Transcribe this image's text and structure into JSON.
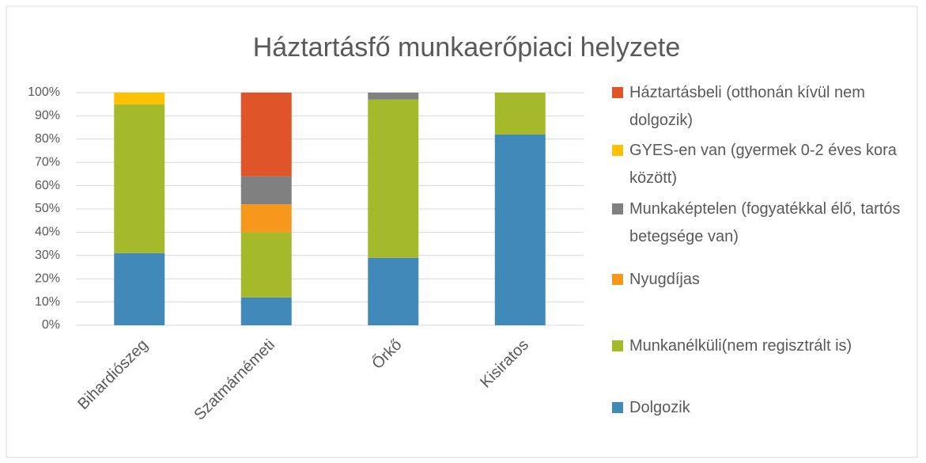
{
  "chart_data": {
    "type": "stacked_bar_100",
    "title": "Háztartásfő munkaerőpiaci helyzete",
    "categories": [
      "Bihardiószeg",
      "Szatmárnémeti",
      "Őrkő",
      "Kisiratos"
    ],
    "series": [
      {
        "name": "Dolgozik",
        "color": "#4189b8",
        "values": [
          31,
          12,
          29,
          82
        ]
      },
      {
        "name": "Munkanélküli(nem regisztrált is)",
        "color": "#a5b92a",
        "values": [
          64,
          28,
          68,
          18
        ]
      },
      {
        "name": "Nyugdíjas",
        "color": "#f7981d",
        "values": [
          0,
          12,
          0,
          0
        ]
      },
      {
        "name": "Munkaképtelen (fogyatékkal élő, tartós betegsége van)",
        "color": "#808080",
        "values": [
          0,
          12,
          3,
          0
        ]
      },
      {
        "name": "GYES-en van (gyermek 0-2 éves kora között)",
        "color": "#ffc000",
        "values": [
          5,
          0,
          0,
          0
        ]
      },
      {
        "name": "Háztartásbeli (otthonán kívül nem dolgozik)",
        "color": "#e0542a",
        "values": [
          0,
          36,
          0,
          0
        ]
      }
    ],
    "ylim": [
      0,
      100
    ],
    "yticks": [
      {
        "value": 0,
        "label": "0%"
      },
      {
        "value": 10,
        "label": "10%"
      },
      {
        "value": 20,
        "label": "20%"
      },
      {
        "value": 30,
        "label": "30%"
      },
      {
        "value": 40,
        "label": "40%"
      },
      {
        "value": 50,
        "label": "50%"
      },
      {
        "value": 60,
        "label": "60%"
      },
      {
        "value": 70,
        "label": "70%"
      },
      {
        "value": 80,
        "label": "80%"
      },
      {
        "value": 90,
        "label": "90%"
      },
      {
        "value": 100,
        "label": "100%"
      }
    ],
    "legend": "right"
  }
}
